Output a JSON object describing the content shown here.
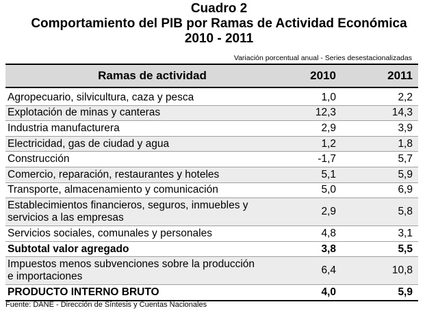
{
  "title": {
    "line1": "Cuadro 2",
    "line2": "Comportamiento del PIB por Ramas de Actividad Económica",
    "line3": "2010 - 2011"
  },
  "note": "Variación porcentual anual - Series desestacionalizadas",
  "columns": {
    "branch": "Ramas de actividad",
    "year1": "2010",
    "year2": "2011"
  },
  "rows": [
    {
      "label": "Agropecuario, silvicultura, caza y pesca",
      "v2010": "1,0",
      "v2011": "2,2"
    },
    {
      "label": "Explotación de minas y canteras",
      "v2010": "12,3",
      "v2011": "14,3"
    },
    {
      "label": "Industria manufacturera",
      "v2010": "2,9",
      "v2011": "3,9"
    },
    {
      "label": "Electricidad, gas de ciudad y agua",
      "v2010": "1,2",
      "v2011": "1,8"
    },
    {
      "label": "Construcción",
      "v2010": "-1,7",
      "v2011": "5,7"
    },
    {
      "label": "Comercio, reparación, restaurantes y hoteles",
      "v2010": "5,1",
      "v2011": "5,9"
    },
    {
      "label": "Transporte, almacenamiento y comunicación",
      "v2010": "5,0",
      "v2011": "6,9"
    },
    {
      "label_line1": "Establecimientos financieros, seguros, inmuebles y",
      "label_line2": "servicios a las empresas",
      "v2010": "2,9",
      "v2011": "5,8"
    },
    {
      "label": "Servicios sociales, comunales y personales",
      "v2010": "4,8",
      "v2011": "3,1"
    },
    {
      "label": "Subtotal valor agregado",
      "v2010": "3,8",
      "v2011": "5,5"
    },
    {
      "label_line1": "Impuestos menos subvenciones sobre la producción",
      "label_line2": "e importaciones",
      "v2010": "6,4",
      "v2011": "10,8"
    },
    {
      "label": "PRODUCTO INTERNO BRUTO",
      "v2010": "4,0",
      "v2011": "5,9"
    }
  ],
  "footer": "Fuente: DANE - Dirección de Síntesis y Cuentas Nacionales"
}
